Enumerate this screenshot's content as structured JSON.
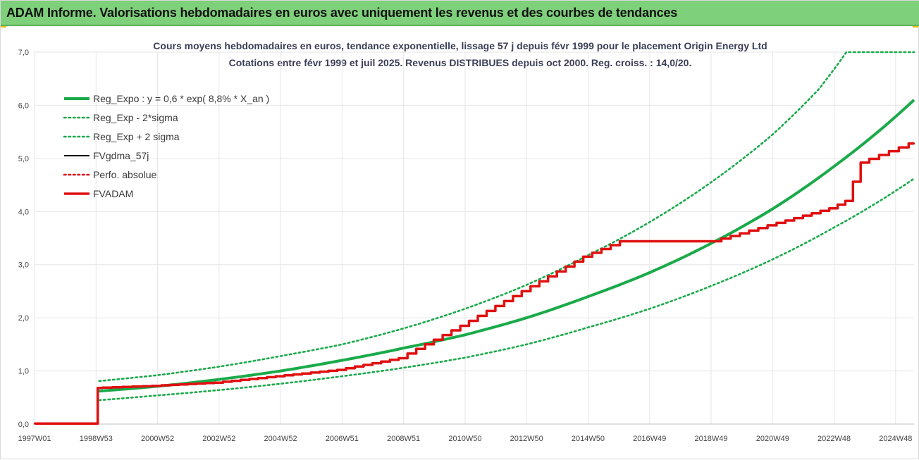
{
  "banner": {
    "title": "ADAM Informe. Valorisations hebdomadaires en euros avec uniquement les revenus et des courbes de tendances"
  },
  "colors": {
    "banner": "#7ed07a",
    "trend": "#1aaa4a",
    "price": "#000000",
    "adam": "#e01010",
    "grid": "#e6e6e6"
  },
  "chart_data": {
    "type": "line",
    "title": "Cours moyens hebdomadaires en euros, tendance exponentielle, lissage 57 j depuis févr 1999 pour le placement Origin Energy Ltd",
    "subtitle": "Cotations entre févr 1999 et juil 2025. Revenus DISTRIBUES depuis oct 2000. Reg. croiss. : 14,0/20.",
    "xlabel": "",
    "ylabel": "",
    "ylim": [
      0,
      7
    ],
    "xlim": [
      1997.0,
      2025.6
    ],
    "grid": true,
    "legend_position": "top-left",
    "y_ticks": [
      "0,0",
      "1,0",
      "2,0",
      "3,0",
      "4,0",
      "5,0",
      "6,0",
      "7,0"
    ],
    "x_ticks": [
      {
        "label": "1997W01",
        "x": 1997.0
      },
      {
        "label": "1998W53",
        "x": 1999.0
      },
      {
        "label": "2000W52",
        "x": 2001.0
      },
      {
        "label": "2002W52",
        "x": 2003.0
      },
      {
        "label": "2004W52",
        "x": 2005.0
      },
      {
        "label": "2006W51",
        "x": 2007.0
      },
      {
        "label": "2008W51",
        "x": 2009.0
      },
      {
        "label": "2010W50",
        "x": 2011.0
      },
      {
        "label": "2012W50",
        "x": 2013.0
      },
      {
        "label": "2014W50",
        "x": 2015.0
      },
      {
        "label": "2016W49",
        "x": 2017.0
      },
      {
        "label": "2018W49",
        "x": 2019.0
      },
      {
        "label": "2020W49",
        "x": 2021.0
      },
      {
        "label": "2022W48",
        "x": 2023.0
      },
      {
        "label": "2024W48",
        "x": 2025.0
      }
    ],
    "series": [
      {
        "name": "Reg_Expo : y = 0,6 * exp( 8,8% *  X_an )",
        "style": "solid-thick",
        "color": "#1aaa4a",
        "x": [
          1999.1,
          2001,
          2003,
          2005,
          2007,
          2009,
          2011,
          2013,
          2015,
          2017,
          2019,
          2021,
          2023,
          2025.6
        ],
        "y": [
          0.62,
          0.71,
          0.84,
          1.0,
          1.2,
          1.43,
          1.68,
          2.0,
          2.4,
          2.85,
          3.4,
          4.05,
          4.85,
          6.1
        ]
      },
      {
        "name": "Reg_Exp - 2*sigma",
        "style": "dotted",
        "color": "#1aaa4a",
        "x": [
          1999.1,
          2001,
          2003,
          2005,
          2007,
          2009,
          2011,
          2013,
          2015,
          2017,
          2019,
          2021,
          2023,
          2025.6
        ],
        "y": [
          0.45,
          0.54,
          0.64,
          0.76,
          0.9,
          1.06,
          1.25,
          1.5,
          1.82,
          2.17,
          2.6,
          3.1,
          3.7,
          4.62
        ]
      },
      {
        "name": "Reg_Exp + 2 sigma",
        "style": "dotted",
        "color": "#1aaa4a",
        "x": [
          1999.1,
          2001,
          2003,
          2005,
          2007,
          2009,
          2011,
          2013,
          2015,
          2017,
          2019,
          2021,
          2022.5,
          2023.4,
          2025.6
        ],
        "y": [
          0.81,
          0.92,
          1.08,
          1.28,
          1.5,
          1.8,
          2.17,
          2.62,
          3.18,
          3.8,
          4.55,
          5.45,
          6.3,
          7.0,
          7.0
        ]
      },
      {
        "name": "FVgdma_57j",
        "style": "solid",
        "color": "#000000",
        "x": [
          1997.0,
          1999.05,
          1999.06,
          2001,
          2003,
          2005,
          2007,
          2009,
          2011,
          2013,
          2015,
          2016.2,
          2019.2,
          2021,
          2023,
          2023.5,
          2024.0,
          2025.6
        ],
        "y": [
          0.01,
          0.01,
          0.68,
          0.72,
          0.78,
          0.9,
          1.02,
          1.24,
          1.85,
          2.5,
          3.15,
          3.44,
          3.44,
          3.74,
          4.06,
          4.2,
          4.92,
          5.28
        ]
      },
      {
        "name": "Perfo. absolue",
        "style": "dotted",
        "color": "#e01010",
        "x": [
          1997.0,
          1999.05,
          1999.06,
          2001,
          2003,
          2005,
          2007,
          2009,
          2011,
          2013,
          2015,
          2016.2,
          2019.2,
          2021,
          2023,
          2023.5,
          2024.0,
          2025.6
        ],
        "y": [
          0.01,
          0.01,
          0.68,
          0.72,
          0.78,
          0.9,
          1.02,
          1.24,
          1.85,
          2.5,
          3.15,
          3.44,
          3.44,
          3.74,
          4.06,
          4.2,
          4.92,
          5.28
        ]
      },
      {
        "name": "FVADAM",
        "style": "step-thick",
        "color": "#e01010",
        "x": [
          1997.0,
          1999.05,
          1999.06,
          2001,
          2003,
          2005,
          2007,
          2009,
          2011,
          2013,
          2015,
          2016.2,
          2019.2,
          2021,
          2023,
          2023.5,
          2024.0,
          2025.6
        ],
        "y": [
          0.01,
          0.01,
          0.68,
          0.72,
          0.78,
          0.9,
          1.02,
          1.24,
          1.85,
          2.5,
          3.15,
          3.44,
          3.44,
          3.74,
          4.06,
          4.2,
          4.92,
          5.28
        ]
      }
    ]
  }
}
